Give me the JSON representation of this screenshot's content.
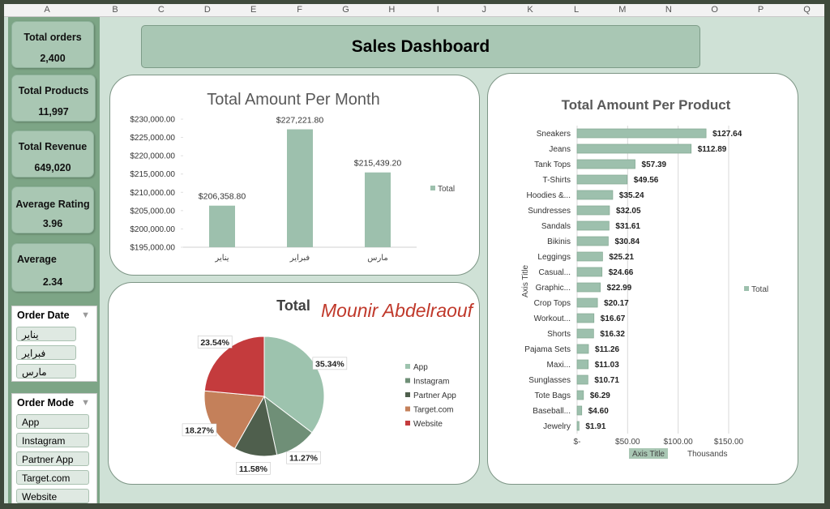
{
  "spreadsheet": {
    "columns": [
      "A",
      "B",
      "C",
      "D",
      "E",
      "F",
      "G",
      "H",
      "I",
      "J",
      "K",
      "L",
      "M",
      "N",
      "O",
      "P",
      "Q"
    ]
  },
  "header": {
    "title": "Sales Dashboard"
  },
  "kpis": [
    {
      "label": "Total orders",
      "value": "2,400"
    },
    {
      "label": "Total Products",
      "value": "11,997"
    },
    {
      "label": "Total Revenue",
      "value": "649,020"
    },
    {
      "label": "Average Rating",
      "value": "3.96"
    },
    {
      "label": "Average",
      "value": "2.34"
    }
  ],
  "slicers": [
    {
      "title": "Order Date",
      "items": [
        "يناير",
        "فبراير",
        "مارس"
      ]
    },
    {
      "title": "Order Mode",
      "items": [
        "App",
        "Instagram",
        "Partner App",
        "Target.com",
        "Website"
      ]
    }
  ],
  "chart_data": [
    {
      "type": "bar",
      "title": "Total Amount Per Month",
      "categories": [
        "يناير",
        "فبراير",
        "مارس"
      ],
      "series": [
        {
          "name": "Total",
          "color": "#9dc0ad",
          "values": [
            206358.8,
            227221.8,
            215439.2
          ],
          "value_labels": [
            "$206,358.80",
            "$227,221.80",
            "$215,439.20"
          ]
        }
      ],
      "ylim": [
        195000,
        230000
      ],
      "yticks": [
        {
          "value": 195000,
          "label": "$195,000.00"
        },
        {
          "value": 200000,
          "label": "$200,000.00"
        },
        {
          "value": 205000,
          "label": "$205,000.00"
        },
        {
          "value": 210000,
          "label": "$210,000.00"
        },
        {
          "value": 215000,
          "label": "$215,000.00"
        },
        {
          "value": 220000,
          "label": "$220,000.00"
        },
        {
          "value": 225000,
          "label": "$225,000.00"
        },
        {
          "value": 230000,
          "label": "$230,000.00"
        }
      ],
      "grid": false,
      "legend": "right"
    },
    {
      "type": "pie",
      "title": "Total",
      "annotation": "Mounir Abdelraouf",
      "categories": [
        "App",
        "Instagram",
        "Partner App",
        "Target.com",
        "Website"
      ],
      "values": [
        35.34,
        11.27,
        11.58,
        18.27,
        23.54
      ],
      "value_labels": [
        "35.34%",
        "11.27%",
        "11.58%",
        "18.27%",
        "23.54%"
      ],
      "colors": [
        "#9dc3ae",
        "#6f8f77",
        "#4f5f4d",
        "#c4805a",
        "#c43b3d"
      ],
      "legend": "right"
    },
    {
      "type": "hbar",
      "title": "Total Amount Per Product",
      "categories": [
        "Sneakers",
        "Jeans",
        "Tank Tops",
        "T-Shirts",
        "Hoodies &...",
        "Sundresses",
        "Sandals",
        "Bikinis",
        "Leggings",
        "Casual...",
        "Graphic...",
        "Crop Tops",
        "Workout...",
        "Shorts",
        "Pajama Sets",
        "Maxi...",
        "Sunglasses",
        "Tote Bags",
        "Baseball...",
        "Jewelry"
      ],
      "series": [
        {
          "name": "Total",
          "color": "#9dc0ad",
          "values": [
            127.64,
            112.89,
            57.39,
            49.56,
            35.24,
            32.05,
            31.61,
            30.84,
            25.21,
            24.66,
            22.99,
            20.17,
            16.67,
            16.32,
            11.26,
            11.03,
            10.71,
            6.29,
            4.6,
            1.91
          ],
          "value_labels": [
            "$127.64",
            "$112.89",
            "$57.39",
            "$49.56",
            "$35.24",
            "$32.05",
            "$31.61",
            "$30.84",
            "$25.21",
            "$24.66",
            "$22.99",
            "$20.17",
            "$16.67",
            "$16.32",
            "$11.26",
            "$11.03",
            "$10.71",
            "$6.29",
            "$4.60",
            "$1.91"
          ]
        }
      ],
      "xlim": [
        0,
        150
      ],
      "xticks": [
        {
          "value": 0,
          "label": "$-"
        },
        {
          "value": 50,
          "label": "$50.00"
        },
        {
          "value": 100,
          "label": "$100.00"
        },
        {
          "value": 150,
          "label": "$150.00"
        }
      ],
      "x_label": "Axis Title",
      "x_units": "Thousands",
      "y_label": "Axis Title",
      "grid": true,
      "legend": "right"
    }
  ]
}
